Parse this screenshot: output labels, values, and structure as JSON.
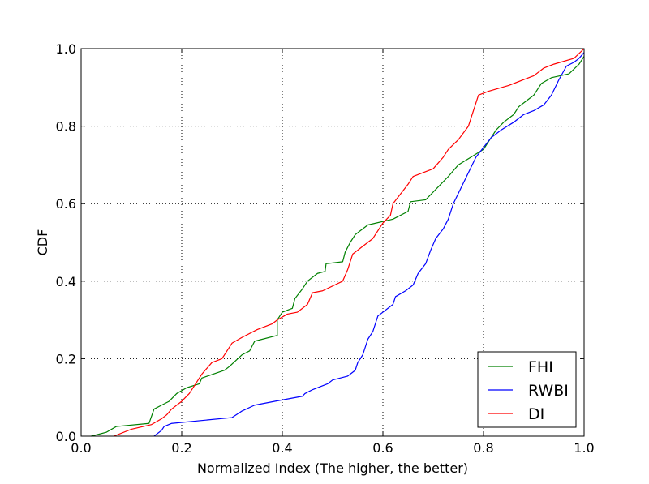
{
  "chart_data": {
    "type": "line",
    "title": "",
    "xlabel": "Normalized Index (The higher, the better)",
    "ylabel": "CDF",
    "xlim": [
      0.0,
      1.0
    ],
    "ylim": [
      0.0,
      1.0
    ],
    "xticks": [
      "0.0",
      "0.2",
      "0.4",
      "0.6",
      "0.8",
      "1.0"
    ],
    "yticks": [
      "0.0",
      "0.2",
      "0.4",
      "0.6",
      "0.8",
      "1.0"
    ],
    "grid": true,
    "legend_position": "bottom-right",
    "series": [
      {
        "name": "FHI",
        "color": "#008000",
        "points": [
          [
            0.02,
            0.0
          ],
          [
            0.05,
            0.01
          ],
          [
            0.07,
            0.025
          ],
          [
            0.135,
            0.033
          ],
          [
            0.145,
            0.07
          ],
          [
            0.16,
            0.08
          ],
          [
            0.175,
            0.09
          ],
          [
            0.19,
            0.11
          ],
          [
            0.21,
            0.125
          ],
          [
            0.235,
            0.135
          ],
          [
            0.24,
            0.15
          ],
          [
            0.285,
            0.17
          ],
          [
            0.295,
            0.18
          ],
          [
            0.32,
            0.21
          ],
          [
            0.335,
            0.22
          ],
          [
            0.345,
            0.245
          ],
          [
            0.39,
            0.26
          ],
          [
            0.39,
            0.3
          ],
          [
            0.4,
            0.32
          ],
          [
            0.42,
            0.33
          ],
          [
            0.425,
            0.355
          ],
          [
            0.44,
            0.38
          ],
          [
            0.45,
            0.4
          ],
          [
            0.47,
            0.42
          ],
          [
            0.485,
            0.425
          ],
          [
            0.487,
            0.445
          ],
          [
            0.52,
            0.45
          ],
          [
            0.525,
            0.475
          ],
          [
            0.535,
            0.5
          ],
          [
            0.545,
            0.52
          ],
          [
            0.555,
            0.53
          ],
          [
            0.57,
            0.545
          ],
          [
            0.62,
            0.56
          ],
          [
            0.65,
            0.58
          ],
          [
            0.655,
            0.605
          ],
          [
            0.685,
            0.61
          ],
          [
            0.7,
            0.63
          ],
          [
            0.715,
            0.65
          ],
          [
            0.73,
            0.67
          ],
          [
            0.75,
            0.7
          ],
          [
            0.775,
            0.72
          ],
          [
            0.8,
            0.74
          ],
          [
            0.81,
            0.76
          ],
          [
            0.825,
            0.79
          ],
          [
            0.84,
            0.81
          ],
          [
            0.86,
            0.83
          ],
          [
            0.87,
            0.85
          ],
          [
            0.9,
            0.88
          ],
          [
            0.915,
            0.91
          ],
          [
            0.935,
            0.925
          ],
          [
            0.97,
            0.935
          ],
          [
            0.99,
            0.96
          ],
          [
            1.0,
            0.98
          ]
        ]
      },
      {
        "name": "RWBI",
        "color": "#0000ff",
        "points": [
          [
            0.145,
            0.0
          ],
          [
            0.16,
            0.015
          ],
          [
            0.165,
            0.025
          ],
          [
            0.18,
            0.033
          ],
          [
            0.3,
            0.048
          ],
          [
            0.32,
            0.065
          ],
          [
            0.345,
            0.08
          ],
          [
            0.385,
            0.09
          ],
          [
            0.44,
            0.103
          ],
          [
            0.445,
            0.11
          ],
          [
            0.46,
            0.12
          ],
          [
            0.49,
            0.135
          ],
          [
            0.5,
            0.145
          ],
          [
            0.53,
            0.155
          ],
          [
            0.545,
            0.17
          ],
          [
            0.55,
            0.19
          ],
          [
            0.56,
            0.21
          ],
          [
            0.57,
            0.25
          ],
          [
            0.58,
            0.27
          ],
          [
            0.59,
            0.31
          ],
          [
            0.61,
            0.33
          ],
          [
            0.62,
            0.34
          ],
          [
            0.625,
            0.36
          ],
          [
            0.645,
            0.375
          ],
          [
            0.66,
            0.39
          ],
          [
            0.67,
            0.42
          ],
          [
            0.685,
            0.445
          ],
          [
            0.695,
            0.48
          ],
          [
            0.705,
            0.51
          ],
          [
            0.72,
            0.535
          ],
          [
            0.73,
            0.56
          ],
          [
            0.74,
            0.6
          ],
          [
            0.755,
            0.64
          ],
          [
            0.77,
            0.68
          ],
          [
            0.785,
            0.72
          ],
          [
            0.8,
            0.745
          ],
          [
            0.815,
            0.77
          ],
          [
            0.835,
            0.79
          ],
          [
            0.86,
            0.81
          ],
          [
            0.88,
            0.83
          ],
          [
            0.9,
            0.84
          ],
          [
            0.92,
            0.855
          ],
          [
            0.935,
            0.88
          ],
          [
            0.95,
            0.92
          ],
          [
            0.965,
            0.955
          ],
          [
            0.98,
            0.965
          ],
          [
            0.99,
            0.975
          ],
          [
            1.0,
            0.99
          ]
        ]
      },
      {
        "name": "DI",
        "color": "#ff0000",
        "points": [
          [
            0.065,
            0.0
          ],
          [
            0.1,
            0.018
          ],
          [
            0.14,
            0.03
          ],
          [
            0.16,
            0.045
          ],
          [
            0.17,
            0.055
          ],
          [
            0.18,
            0.07
          ],
          [
            0.2,
            0.09
          ],
          [
            0.215,
            0.11
          ],
          [
            0.22,
            0.12
          ],
          [
            0.24,
            0.16
          ],
          [
            0.26,
            0.19
          ],
          [
            0.28,
            0.2
          ],
          [
            0.3,
            0.24
          ],
          [
            0.32,
            0.255
          ],
          [
            0.35,
            0.275
          ],
          [
            0.38,
            0.29
          ],
          [
            0.39,
            0.3
          ],
          [
            0.41,
            0.315
          ],
          [
            0.43,
            0.32
          ],
          [
            0.45,
            0.34
          ],
          [
            0.46,
            0.37
          ],
          [
            0.48,
            0.375
          ],
          [
            0.52,
            0.4
          ],
          [
            0.53,
            0.43
          ],
          [
            0.54,
            0.47
          ],
          [
            0.56,
            0.49
          ],
          [
            0.58,
            0.51
          ],
          [
            0.6,
            0.55
          ],
          [
            0.615,
            0.57
          ],
          [
            0.62,
            0.6
          ],
          [
            0.635,
            0.625
          ],
          [
            0.65,
            0.65
          ],
          [
            0.66,
            0.67
          ],
          [
            0.68,
            0.68
          ],
          [
            0.7,
            0.69
          ],
          [
            0.72,
            0.72
          ],
          [
            0.73,
            0.74
          ],
          [
            0.75,
            0.765
          ],
          [
            0.77,
            0.8
          ],
          [
            0.78,
            0.84
          ],
          [
            0.79,
            0.88
          ],
          [
            0.81,
            0.89
          ],
          [
            0.85,
            0.905
          ],
          [
            0.88,
            0.92
          ],
          [
            0.9,
            0.93
          ],
          [
            0.92,
            0.95
          ],
          [
            0.94,
            0.96
          ],
          [
            0.98,
            0.975
          ],
          [
            1.0,
            1.0
          ]
        ]
      }
    ]
  }
}
